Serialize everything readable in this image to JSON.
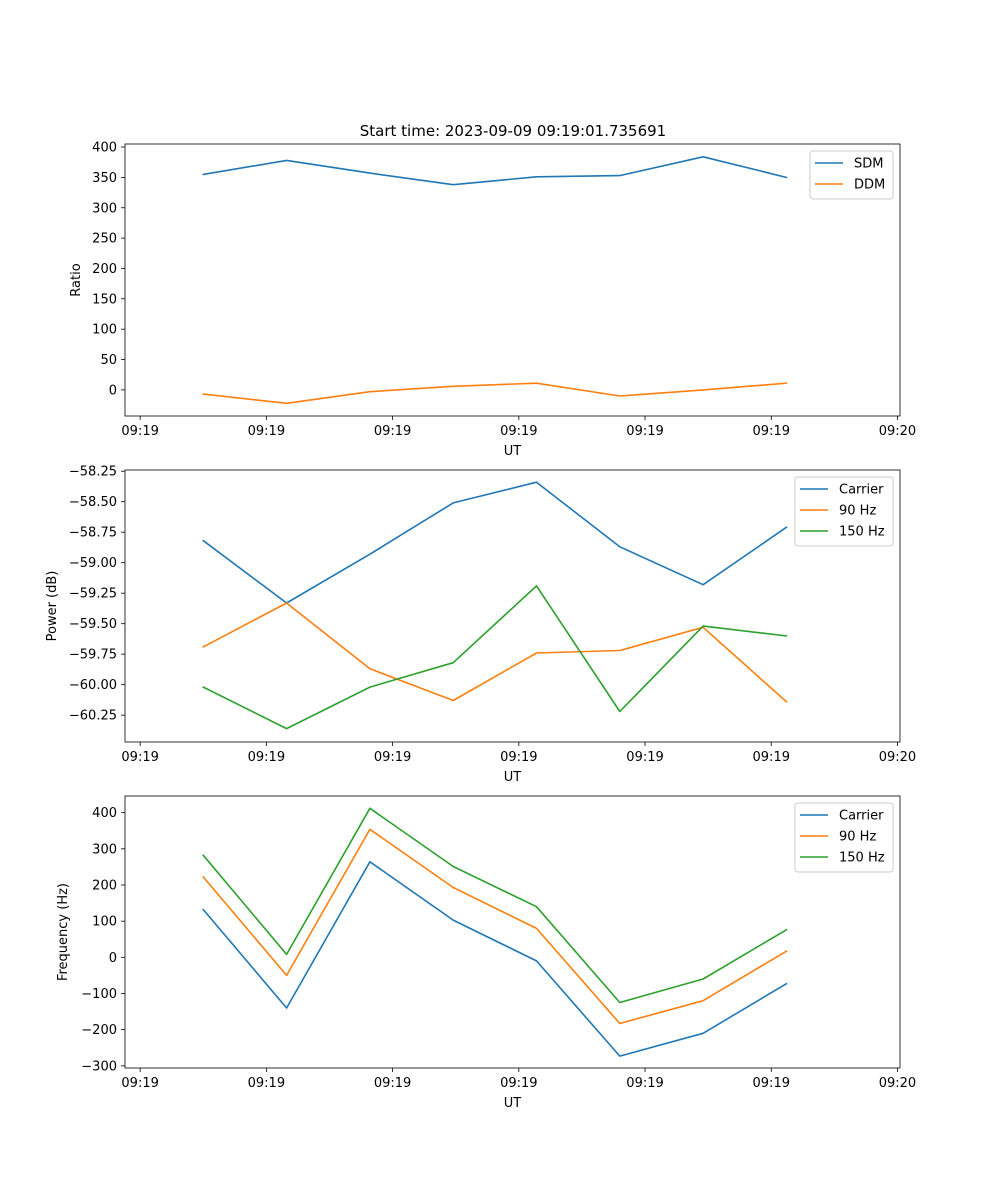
{
  "title": "Start time: 2023-09-09 09:19:01.735691",
  "chart_data": [
    {
      "type": "line",
      "ylabel": "Ratio",
      "xlabel": "UT",
      "x": [
        0.5,
        1.16,
        1.82,
        2.48,
        3.14,
        3.8,
        4.46,
        5.12
      ],
      "xlim": [
        -0.12,
        6.02
      ],
      "xticks": [
        0,
        1,
        2,
        3,
        4,
        5,
        6
      ],
      "xtick_labels": [
        "09:19",
        "09:19",
        "09:19",
        "09:19",
        "09:19",
        "09:19",
        "09:20"
      ],
      "ylim": [
        -43,
        405
      ],
      "yticks": [
        0,
        50,
        100,
        150,
        200,
        250,
        300,
        350,
        400
      ],
      "ytick_labels": [
        "0",
        "50",
        "100",
        "150",
        "200",
        "250",
        "300",
        "350",
        "400"
      ],
      "legend": "top-right",
      "series": [
        {
          "name": "SDM",
          "color": "#1f77b4",
          "values": [
            355,
            378,
            357,
            338,
            351,
            353,
            384,
            350
          ]
        },
        {
          "name": "DDM",
          "color": "#ff7f0e",
          "values": [
            -7,
            -22,
            -3,
            6,
            11,
            -10,
            0,
            11
          ]
        }
      ]
    },
    {
      "type": "line",
      "ylabel": "Power (dB)",
      "xlabel": "UT",
      "x": [
        0.5,
        1.16,
        1.82,
        2.48,
        3.14,
        3.8,
        4.46,
        5.12
      ],
      "xlim": [
        -0.12,
        6.02
      ],
      "xticks": [
        0,
        1,
        2,
        3,
        4,
        5,
        6
      ],
      "xtick_labels": [
        "09:19",
        "09:19",
        "09:19",
        "09:19",
        "09:19",
        "09:19",
        "09:20"
      ],
      "ylim": [
        -60.47,
        -58.24
      ],
      "yticks": [
        -60.25,
        -60.0,
        -59.75,
        -59.5,
        -59.25,
        -59.0,
        -58.75,
        -58.5,
        -58.25
      ],
      "ytick_labels": [
        "−60.25",
        "−60.00",
        "−59.75",
        "−59.50",
        "−59.25",
        "−59.00",
        "−58.75",
        "−58.50",
        "−58.25"
      ],
      "legend": "top-right",
      "series": [
        {
          "name": "Carrier",
          "color": "#1f77b4",
          "values": [
            -58.82,
            -59.33,
            -58.93,
            -58.51,
            -58.34,
            -58.87,
            -59.18,
            -58.71
          ]
        },
        {
          "name": "90 Hz",
          "color": "#ff7f0e",
          "values": [
            -59.69,
            -59.33,
            -59.87,
            -60.13,
            -59.74,
            -59.72,
            -59.53,
            -60.14
          ]
        },
        {
          "name": "150 Hz",
          "color": "#2ca02c",
          "values": [
            -60.02,
            -60.36,
            -60.02,
            -59.82,
            -59.19,
            -60.22,
            -59.52,
            -59.6
          ]
        }
      ]
    },
    {
      "type": "line",
      "ylabel": "Frequency (Hz)",
      "xlabel": "UT",
      "x": [
        0.5,
        1.16,
        1.82,
        2.48,
        3.14,
        3.8,
        4.46,
        5.12
      ],
      "xlim": [
        -0.12,
        6.02
      ],
      "xticks": [
        0,
        1,
        2,
        3,
        4,
        5,
        6
      ],
      "xtick_labels": [
        "09:19",
        "09:19",
        "09:19",
        "09:19",
        "09:19",
        "09:19",
        "09:20"
      ],
      "ylim": [
        -306,
        446
      ],
      "yticks": [
        -300,
        -200,
        -100,
        0,
        100,
        200,
        300,
        400
      ],
      "ytick_labels": [
        "−300",
        "−200",
        "−100",
        "0",
        "100",
        "200",
        "300",
        "400"
      ],
      "legend": "top-right",
      "series": [
        {
          "name": "Carrier",
          "color": "#1f77b4",
          "values": [
            132,
            -140,
            264,
            103,
            -10,
            -273,
            -210,
            -73
          ]
        },
        {
          "name": "90 Hz",
          "color": "#ff7f0e",
          "values": [
            222,
            -50,
            354,
            193,
            80,
            -183,
            -120,
            17
          ]
        },
        {
          "name": "150 Hz",
          "color": "#2ca02c",
          "values": [
            282,
            8,
            412,
            251,
            140,
            -125,
            -60,
            76
          ]
        }
      ]
    }
  ]
}
